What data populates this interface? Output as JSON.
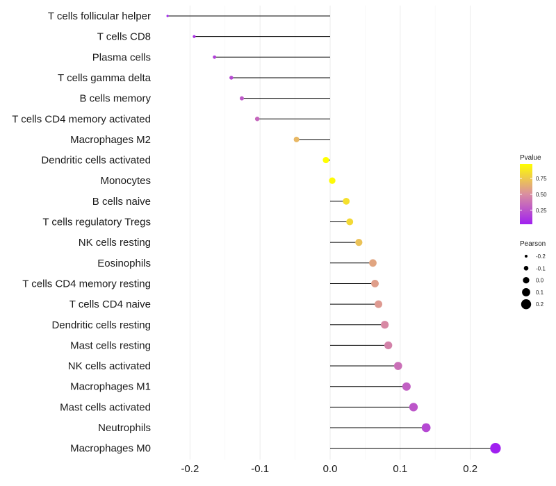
{
  "chart_data": {
    "type": "lollipop",
    "xlabel": "",
    "ylabel": "",
    "xlim": [
      -0.245,
      0.245
    ],
    "x_ticks": [
      -0.2,
      -0.1,
      0.0,
      0.1,
      0.2
    ],
    "x_tick_labels": [
      "-0.2",
      "-0.1",
      "0.0",
      "0.1",
      "0.2"
    ],
    "categories": [
      "T cells follicular helper",
      "T cells CD8",
      "Plasma cells",
      "T cells gamma delta",
      "B cells memory",
      "T cells CD4 memory activated",
      "Macrophages M2",
      "Dendritic cells activated",
      "Monocytes",
      "B cells naive",
      "T cells regulatory  Tregs ",
      "NK cells resting",
      "Eosinophils",
      "T cells CD4 memory resting",
      "T cells CD4 naive",
      "Dendritic cells resting",
      "Mast cells resting",
      "NK cells activated",
      "Macrophages M1",
      "Mast cells activated",
      "Neutrophils",
      "Macrophages M0"
    ],
    "pearson": [
      -0.232,
      -0.194,
      -0.165,
      -0.141,
      -0.126,
      -0.104,
      -0.048,
      -0.006,
      0.003,
      0.023,
      0.028,
      0.041,
      0.061,
      0.064,
      0.069,
      0.078,
      0.083,
      0.097,
      0.109,
      0.119,
      0.137,
      0.236
    ],
    "pvalue": [
      0.05,
      0.1,
      0.17,
      0.21,
      0.27,
      0.33,
      0.68,
      0.98,
      0.96,
      0.85,
      0.82,
      0.72,
      0.6,
      0.57,
      0.55,
      0.48,
      0.45,
      0.37,
      0.3,
      0.26,
      0.2,
      0.03
    ],
    "legend": {
      "color_title": "Pvalue",
      "color_ticks": [
        0.25,
        0.5,
        0.75
      ],
      "color_tick_labels": [
        "0.25",
        "0.50",
        "0.75"
      ],
      "color_low": "#a020f0",
      "color_mid": "#da8fa0",
      "color_high": "#ffff00",
      "size_title": "Pearson",
      "size_values": [
        -0.2,
        -0.1,
        0.0,
        0.1,
        0.2
      ],
      "size_labels": [
        "-0.2",
        "-0.1",
        "0.0",
        "0.1",
        "0.2"
      ]
    },
    "grid": true
  }
}
